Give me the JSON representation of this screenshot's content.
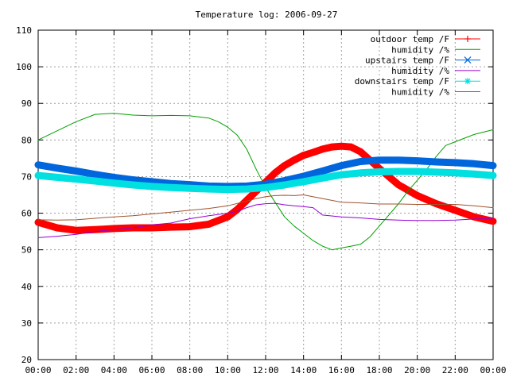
{
  "chart_data": {
    "type": "line",
    "title": "Temperature log: 2006-09-27",
    "xlabel": "",
    "ylabel": "",
    "x_ticks": [
      "00:00",
      "02:00",
      "04:00",
      "06:00",
      "08:00",
      "10:00",
      "12:00",
      "14:00",
      "16:00",
      "18:00",
      "20:00",
      "22:00",
      "00:00"
    ],
    "ylim": [
      20,
      110
    ],
    "y_ticks": [
      20,
      30,
      40,
      50,
      60,
      70,
      80,
      90,
      100,
      110
    ],
    "x_range_hours": [
      0,
      24
    ],
    "grid": true,
    "legend_position": "top-right",
    "series": [
      {
        "name": "outdoor temp /F",
        "color": "#ff0000",
        "marker": "plus",
        "x": [
          0,
          1,
          2,
          3,
          4,
          5,
          6,
          7,
          8,
          9,
          10,
          10.5,
          11,
          11.5,
          12,
          12.5,
          13,
          13.5,
          14,
          14.5,
          15,
          15.5,
          16,
          16.5,
          17,
          17.5,
          18,
          18.5,
          19,
          20,
          21,
          22,
          23,
          24
        ],
        "y": [
          57.5,
          56,
          55.3,
          55.5,
          55.8,
          56,
          56,
          56.2,
          56.3,
          57,
          59,
          61,
          63.5,
          66,
          68.5,
          71,
          73,
          74.5,
          75.8,
          76.6,
          77.5,
          78.1,
          78.3,
          78.1,
          76.8,
          74.5,
          72.2,
          70,
          67.8,
          64.8,
          62.6,
          60.8,
          59,
          57.8
        ]
      },
      {
        "name": "humidity /%",
        "color": "#00a000",
        "marker": "none",
        "x": [
          0,
          1,
          2,
          3,
          4,
          5,
          6,
          7,
          8,
          9,
          9.5,
          10,
          10.5,
          11,
          11.5,
          12,
          12.5,
          13,
          13.5,
          14,
          14.5,
          15,
          15.5,
          16,
          16.5,
          17,
          17.5,
          18,
          18.5,
          19,
          19.5,
          20,
          20.5,
          21,
          21.5,
          22,
          23,
          24
        ],
        "y": [
          80,
          82.5,
          85,
          87,
          87.3,
          86.8,
          86.6,
          86.7,
          86.6,
          86,
          85,
          83.5,
          81.3,
          77.5,
          72,
          67,
          63,
          59,
          56.5,
          54.5,
          52.5,
          51,
          50,
          50.5,
          51,
          51.5,
          53.5,
          56.5,
          59.5,
          62.5,
          66,
          69,
          72,
          75.5,
          78.5,
          79.5,
          81.5,
          82.8
        ]
      },
      {
        "name": "upstairs temp /F",
        "color": "#0066dd",
        "marker": "x",
        "x": [
          0,
          1,
          2,
          3,
          4,
          5,
          6,
          7,
          8,
          9,
          10,
          11,
          12,
          13,
          14,
          15,
          16,
          17,
          18,
          19,
          20,
          21,
          22,
          23,
          24
        ],
        "y": [
          73.2,
          72.3,
          71.5,
          70.6,
          69.8,
          69.1,
          68.6,
          68.1,
          67.8,
          67.4,
          67.3,
          67.4,
          67.9,
          68.9,
          70.1,
          71.5,
          73,
          74.1,
          74.5,
          74.5,
          74.3,
          74,
          73.8,
          73.5,
          73
        ]
      },
      {
        "name": "humidity /%",
        "color": "#9400d3",
        "marker": "none",
        "x": [
          0,
          1,
          2,
          3,
          4,
          5,
          6,
          7,
          8,
          9,
          10,
          10.5,
          11,
          11.5,
          12,
          12.5,
          13,
          13.5,
          14,
          14.5,
          15,
          16,
          17,
          18,
          19,
          20,
          21,
          22,
          23,
          24
        ],
        "y": [
          53.3,
          53.7,
          54.2,
          55,
          55.5,
          56,
          56.8,
          57.3,
          58.5,
          59.3,
          60,
          60.5,
          61.5,
          62.3,
          62.6,
          62.7,
          62.3,
          62,
          61.8,
          61.5,
          59.5,
          59,
          58.7,
          58.3,
          58.1,
          58,
          58,
          58.1,
          58.4,
          58.6
        ]
      },
      {
        "name": "downstairs temp /F",
        "color": "#00e0e0",
        "marker": "star",
        "x": [
          0,
          1,
          2,
          3,
          4,
          5,
          6,
          7,
          8,
          9,
          10,
          11,
          12,
          13,
          14,
          15,
          16,
          17,
          18,
          19,
          20,
          21,
          22,
          23,
          24
        ],
        "y": [
          70.3,
          69.8,
          69.3,
          68.8,
          68.2,
          67.7,
          67.3,
          67,
          66.8,
          66.6,
          66.5,
          66.6,
          67,
          67.7,
          68.6,
          69.6,
          70.5,
          71,
          71.3,
          71.4,
          71.4,
          71.2,
          71,
          70.7,
          70.3
        ]
      },
      {
        "name": "humidity /%",
        "color": "#a0522d",
        "marker": "none",
        "x": [
          0,
          1,
          2,
          3,
          4,
          5,
          6,
          7,
          8,
          9,
          10,
          11,
          11.5,
          12,
          12.5,
          13,
          13.5,
          14,
          15,
          16,
          17,
          18,
          19,
          20,
          21,
          22,
          23,
          24
        ],
        "y": [
          58.2,
          58.1,
          58.2,
          58.6,
          59,
          59.3,
          59.8,
          60.3,
          60.8,
          61.3,
          62,
          63.3,
          64,
          64.5,
          64.8,
          64.9,
          64.8,
          65,
          64,
          63,
          62.8,
          62.5,
          62.5,
          62.4,
          62.4,
          62.4,
          62,
          61.5
        ]
      }
    ]
  }
}
